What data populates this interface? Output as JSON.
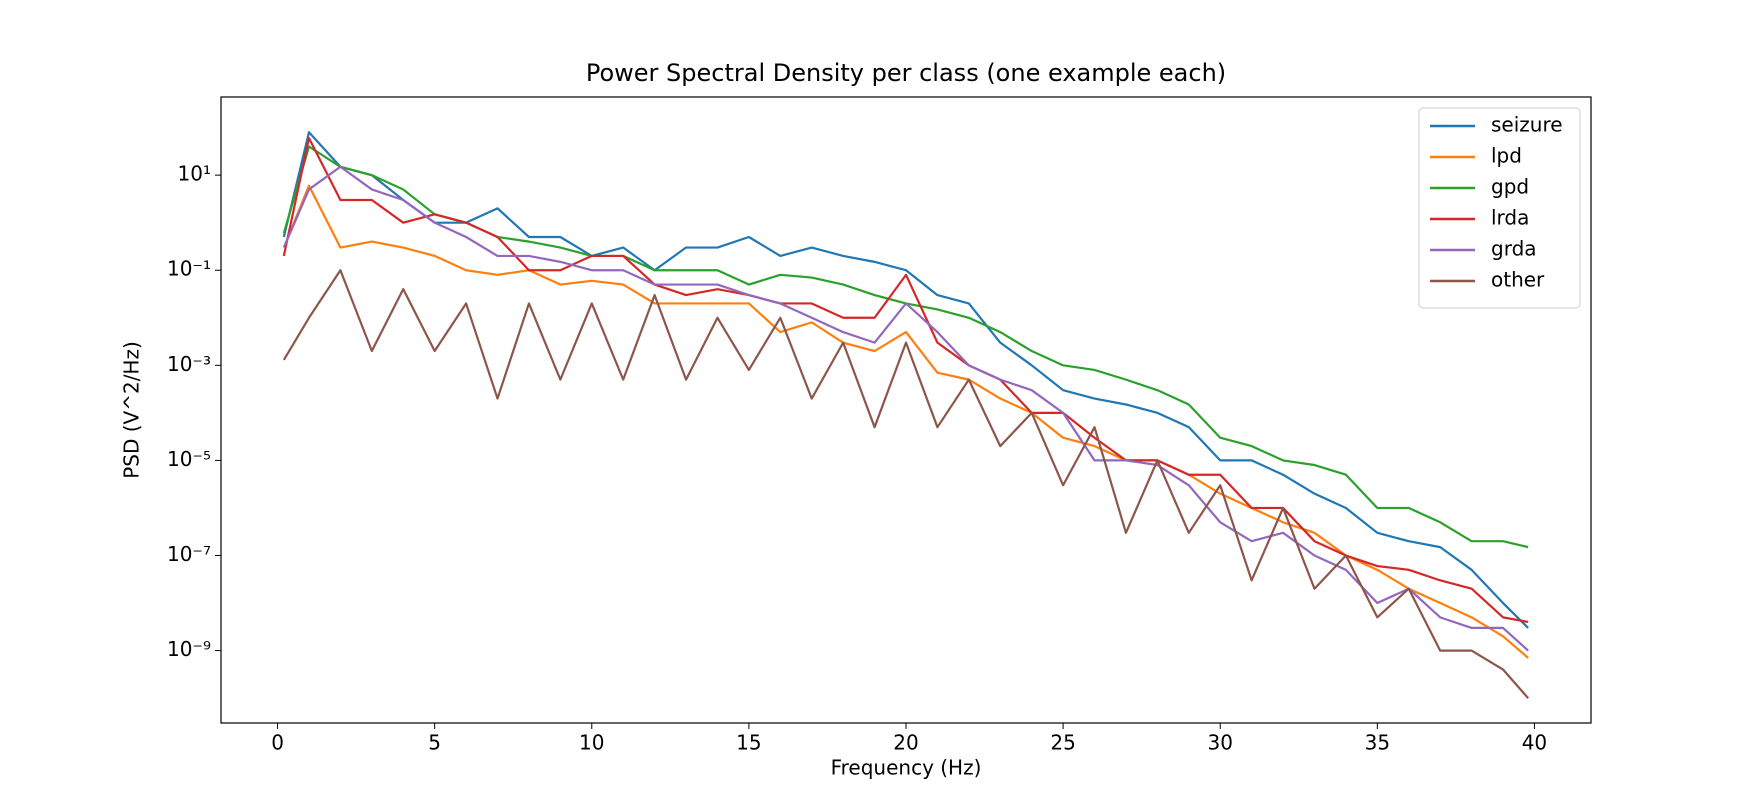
{
  "chart_data": {
    "type": "line",
    "title": "Power Spectral Density per class (one example each)",
    "xlabel": "Frequency (Hz)",
    "ylabel": "PSD (V^2/Hz)",
    "log_y": true,
    "grid": false,
    "legend": "upper right",
    "x": [
      0.2,
      1,
      2,
      3,
      4,
      5,
      6,
      7,
      8,
      9,
      10,
      11,
      12,
      13,
      14,
      15,
      16,
      17,
      18,
      19,
      20,
      21,
      22,
      23,
      24,
      25,
      26,
      27,
      28,
      29,
      30,
      31,
      32,
      33,
      34,
      35,
      36,
      37,
      38,
      39,
      39.8
    ],
    "series": [
      {
        "name": "seizure",
        "color": "#1f77b4",
        "values": [
          0.5,
          80,
          15,
          10,
          3,
          1,
          1,
          2,
          0.5,
          0.5,
          0.2,
          0.3,
          0.1,
          0.3,
          0.3,
          0.5,
          0.2,
          0.3,
          0.2,
          0.15,
          0.1,
          0.03,
          0.02,
          0.003,
          0.001,
          0.0003,
          0.0002,
          0.00015,
          0.0001,
          5e-05,
          1e-05,
          1e-05,
          5e-06,
          2e-06,
          1e-06,
          3e-07,
          2e-07,
          1.5e-07,
          5e-08,
          1e-08,
          3e-09
        ]
      },
      {
        "name": "lpd",
        "color": "#ff7f0e",
        "values": [
          0.3,
          6,
          0.3,
          0.4,
          0.3,
          0.2,
          0.1,
          0.08,
          0.1,
          0.05,
          0.06,
          0.05,
          0.02,
          0.02,
          0.02,
          0.02,
          0.005,
          0.008,
          0.003,
          0.002,
          0.005,
          0.0007,
          0.0005,
          0.0002,
          0.0001,
          3e-05,
          2e-05,
          1e-05,
          1e-05,
          5e-06,
          2e-06,
          1e-06,
          5e-07,
          3e-07,
          1e-07,
          5e-08,
          2e-08,
          1e-08,
          5e-09,
          2e-09,
          7e-10
        ]
      },
      {
        "name": "gpd",
        "color": "#2ca02c",
        "values": [
          0.6,
          40,
          15,
          10,
          5,
          1.5,
          1,
          0.5,
          0.4,
          0.3,
          0.2,
          0.2,
          0.1,
          0.1,
          0.1,
          0.05,
          0.08,
          0.07,
          0.05,
          0.03,
          0.02,
          0.015,
          0.01,
          0.005,
          0.002,
          0.001,
          0.0008,
          0.0005,
          0.0003,
          0.00015,
          3e-05,
          2e-05,
          1e-05,
          8e-06,
          5e-06,
          1e-06,
          1e-06,
          5e-07,
          2e-07,
          2e-07,
          1.5e-07
        ]
      },
      {
        "name": "lrda",
        "color": "#d62728",
        "values": [
          0.2,
          60,
          3,
          3,
          1,
          1.5,
          1,
          0.5,
          0.1,
          0.1,
          0.2,
          0.2,
          0.05,
          0.03,
          0.04,
          0.03,
          0.02,
          0.02,
          0.01,
          0.01,
          0.08,
          0.003,
          0.001,
          0.0005,
          0.0001,
          0.0001,
          3e-05,
          1e-05,
          1e-05,
          5e-06,
          5e-06,
          1e-06,
          1e-06,
          2e-07,
          1e-07,
          6e-08,
          5e-08,
          3e-08,
          2e-08,
          5e-09,
          4e-09
        ]
      },
      {
        "name": "grda",
        "color": "#9467bd",
        "values": [
          0.3,
          5,
          15,
          5,
          3,
          1,
          0.5,
          0.2,
          0.2,
          0.15,
          0.1,
          0.1,
          0.05,
          0.05,
          0.05,
          0.03,
          0.02,
          0.01,
          0.005,
          0.003,
          0.02,
          0.005,
          0.001,
          0.0005,
          0.0003,
          0.0001,
          1e-05,
          1e-05,
          8e-06,
          3e-06,
          5e-07,
          2e-07,
          3e-07,
          1e-07,
          5e-08,
          1e-08,
          2e-08,
          5e-09,
          3e-09,
          3e-09,
          1e-09
        ]
      },
      {
        "name": "other",
        "color": "#8c564b",
        "values": [
          0.0013,
          0.01,
          0.1,
          0.002,
          0.04,
          0.002,
          0.02,
          0.0002,
          0.02,
          0.0005,
          0.02,
          0.0005,
          0.03,
          0.0005,
          0.01,
          0.0008,
          0.01,
          0.0002,
          0.003,
          5e-05,
          0.003,
          5e-05,
          0.0005,
          2e-05,
          0.0001,
          3e-06,
          5e-05,
          3e-07,
          1e-05,
          3e-07,
          3e-06,
          3e-08,
          1e-06,
          2e-08,
          1e-07,
          5e-09,
          2e-08,
          1e-09,
          1e-09,
          4e-10,
          1e-10
        ]
      }
    ],
    "xlim": [
      -1.8,
      41.8
    ],
    "xticks": [
      0,
      5,
      10,
      15,
      20,
      25,
      30,
      35,
      40
    ],
    "ylim": [
      3e-11,
      440
    ],
    "yticks": [
      {
        "value": 1e-09,
        "label": "10⁻⁹"
      },
      {
        "value": 1e-07,
        "label": "10⁻⁷"
      },
      {
        "value": 1e-05,
        "label": "10⁻⁵"
      },
      {
        "value": 0.001,
        "label": "10⁻³"
      },
      {
        "value": 0.1,
        "label": "10⁻¹"
      },
      {
        "value": 10,
        "label": "10¹"
      }
    ]
  }
}
